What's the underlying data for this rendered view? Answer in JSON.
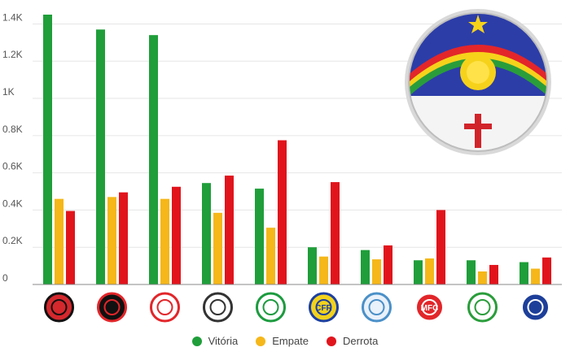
{
  "chart_data": {
    "type": "bar",
    "categories": [
      "Sport",
      "Santa Cruz",
      "Náutico",
      "Central",
      "América",
      "CFR",
      "Petrolina",
      "Salgueiro",
      "Belo Jardim",
      "Vera Cruz"
    ],
    "series": [
      {
        "name": "Vitória",
        "color": "#1f9e3a",
        "values": [
          1450,
          1370,
          1340,
          545,
          515,
          200,
          185,
          130,
          130,
          120
        ]
      },
      {
        "name": "Empate",
        "color": "#f5b719",
        "values": [
          460,
          470,
          460,
          385,
          305,
          150,
          135,
          140,
          70,
          85
        ]
      },
      {
        "name": "Derrota",
        "color": "#e1141c",
        "values": [
          395,
          495,
          525,
          585,
          775,
          550,
          210,
          400,
          105,
          145
        ]
      }
    ],
    "y_ticks": [
      {
        "value": 0,
        "label": "0"
      },
      {
        "value": 200,
        "label": "0.2K"
      },
      {
        "value": 400,
        "label": "0.4K"
      },
      {
        "value": 600,
        "label": "0.6K"
      },
      {
        "value": 800,
        "label": "0.8K"
      },
      {
        "value": 1000,
        "label": "1K"
      },
      {
        "value": 1200,
        "label": "1.2K"
      },
      {
        "value": 1400,
        "label": "1.4K"
      }
    ],
    "ylim": [
      0,
      1450
    ],
    "grid": true,
    "legend_position": "bottom-center",
    "title": "",
    "xlabel": "",
    "ylabel": ""
  },
  "decorations": {
    "flag_icon": "pernambuco-flag-icon",
    "club_icons": [
      "sport-crest-icon",
      "santa-cruz-crest-icon",
      "nautico-crest-icon",
      "central-crest-icon",
      "america-crest-icon",
      "cfr-crest-icon",
      "petrolina-crest-icon",
      "salgueiro-crest-icon",
      "belo-jardim-crest-icon",
      "vera-cruz-crest-icon"
    ],
    "cfr_label": "CFR",
    "mfc_label": "MFC"
  }
}
